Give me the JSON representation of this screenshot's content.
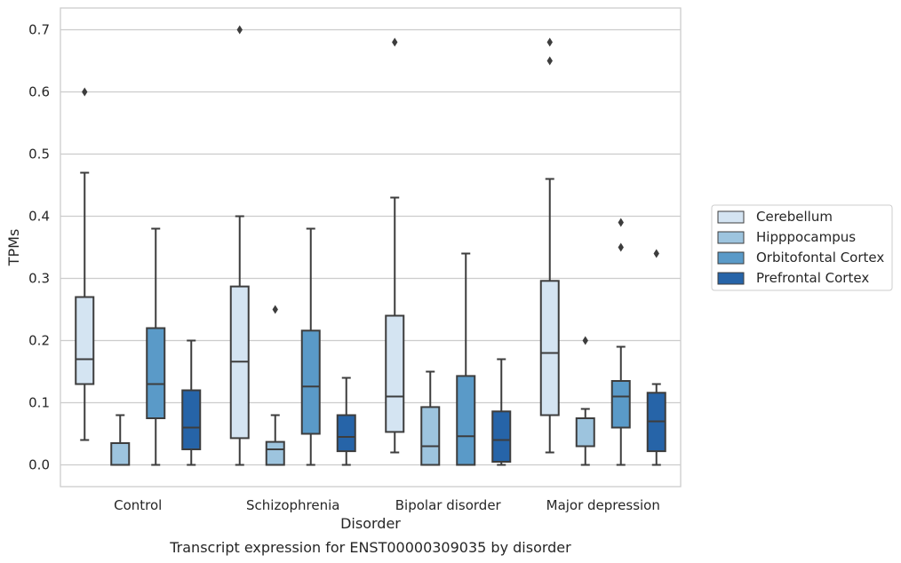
{
  "chart_data": {
    "type": "box",
    "title": "Transcript expression for ENST00000309035 by disorder",
    "xlabel": "Disorder",
    "ylabel": "TPMs",
    "ylim": [
      -0.035,
      0.735
    ],
    "yticks": [
      0.0,
      0.1,
      0.2,
      0.3,
      0.4,
      0.5,
      0.6,
      0.7
    ],
    "ytick_labels": [
      "0.0",
      "0.1",
      "0.2",
      "0.3",
      "0.4",
      "0.5",
      "0.6",
      "0.7"
    ],
    "grid": "horizontal",
    "legend_position": "right",
    "categories": [
      "Control",
      "Schizophrenia",
      "Bipolar disorder",
      "Major depression"
    ],
    "series": [
      {
        "name": "Cerebellum",
        "color": "#d4e4f2",
        "boxes": [
          {
            "whislo": 0.04,
            "q1": 0.13,
            "med": 0.17,
            "q3": 0.27,
            "whishi": 0.47,
            "fliers": [
              0.6
            ]
          },
          {
            "whislo": 0.0,
            "q1": 0.043,
            "med": 0.166,
            "q3": 0.287,
            "whishi": 0.4,
            "fliers": [
              0.7
            ]
          },
          {
            "whislo": 0.02,
            "q1": 0.053,
            "med": 0.11,
            "q3": 0.24,
            "whishi": 0.43,
            "fliers": [
              0.68
            ]
          },
          {
            "whislo": 0.02,
            "q1": 0.08,
            "med": 0.18,
            "q3": 0.296,
            "whishi": 0.46,
            "fliers": [
              0.65,
              0.68
            ]
          }
        ]
      },
      {
        "name": "Hipppocampus",
        "color": "#9dc4de",
        "boxes": [
          {
            "whislo": 0.0,
            "q1": 0.0,
            "med": 0.0,
            "q3": 0.035,
            "whishi": 0.08,
            "fliers": []
          },
          {
            "whislo": 0.0,
            "q1": 0.0,
            "med": 0.025,
            "q3": 0.037,
            "whishi": 0.08,
            "fliers": [
              0.25
            ]
          },
          {
            "whislo": 0.0,
            "q1": 0.0,
            "med": 0.03,
            "q3": 0.093,
            "whishi": 0.15,
            "fliers": []
          },
          {
            "whislo": 0.0,
            "q1": 0.03,
            "med": 0.075,
            "q3": 0.075,
            "whishi": 0.09,
            "fliers": [
              0.2
            ]
          }
        ]
      },
      {
        "name": "Orbitofontal Cortex",
        "color": "#5a9ac8",
        "boxes": [
          {
            "whislo": 0.0,
            "q1": 0.075,
            "med": 0.13,
            "q3": 0.22,
            "whishi": 0.38,
            "fliers": []
          },
          {
            "whislo": 0.0,
            "q1": 0.05,
            "med": 0.126,
            "q3": 0.216,
            "whishi": 0.38,
            "fliers": []
          },
          {
            "whislo": 0.0,
            "q1": 0.0,
            "med": 0.046,
            "q3": 0.143,
            "whishi": 0.34,
            "fliers": []
          },
          {
            "whislo": 0.0,
            "q1": 0.06,
            "med": 0.11,
            "q3": 0.135,
            "whishi": 0.19,
            "fliers": [
              0.35,
              0.39
            ]
          }
        ]
      },
      {
        "name": "Prefrontal Cortex",
        "color": "#2664a8",
        "boxes": [
          {
            "whislo": 0.0,
            "q1": 0.025,
            "med": 0.06,
            "q3": 0.12,
            "whishi": 0.2,
            "fliers": []
          },
          {
            "whislo": 0.0,
            "q1": 0.022,
            "med": 0.045,
            "q3": 0.08,
            "whishi": 0.14,
            "fliers": []
          },
          {
            "whislo": 0.0,
            "q1": 0.005,
            "med": 0.04,
            "q3": 0.086,
            "whishi": 0.17,
            "fliers": []
          },
          {
            "whislo": 0.0,
            "q1": 0.022,
            "med": 0.07,
            "q3": 0.116,
            "whishi": 0.13,
            "fliers": [
              0.34
            ]
          }
        ]
      }
    ],
    "colors": {
      "grid": "#cccccc",
      "frame": "#cccccc",
      "line": "#3d3d3d",
      "text": "#262626"
    }
  }
}
